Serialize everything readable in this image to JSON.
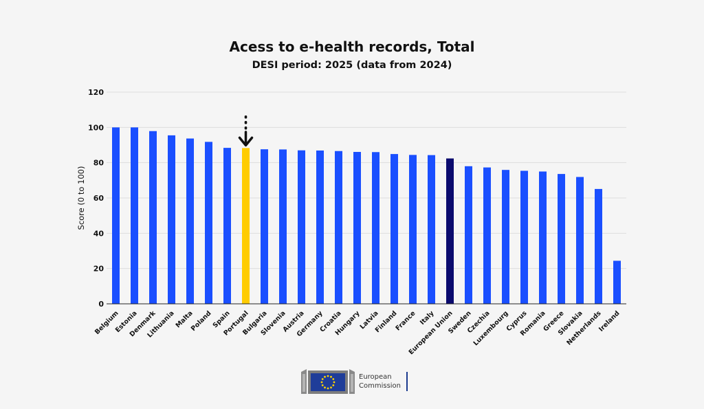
{
  "chart_data": {
    "type": "bar",
    "title": "Acess to e-health records, Total",
    "subtitle": "DESI period: 2025 (data from 2024)",
    "ylabel": "Score (0 to 100)",
    "xlabel": "",
    "ylim": [
      0,
      120
    ],
    "yticks": [
      0,
      20,
      40,
      60,
      80,
      100,
      120
    ],
    "grid": true,
    "categories": [
      "Belgium",
      "Estonia",
      "Denmark",
      "Lithuania",
      "Malta",
      "Poland",
      "Spain",
      "Portugal",
      "Bulgaria",
      "Slovenia",
      "Austria",
      "Germany",
      "Croatia",
      "Hungary",
      "Latvia",
      "Finland",
      "France",
      "Italy",
      "European Union",
      "Sweden",
      "Czechia",
      "Luxembourg",
      "Cyprus",
      "Romania",
      "Greece",
      "Slovakia",
      "Netherlands",
      "Ireland"
    ],
    "values": [
      100,
      100,
      97.9,
      95.5,
      93.7,
      91.8,
      88.4,
      88.3,
      87.6,
      87.5,
      87.0,
      86.9,
      86.6,
      86.1,
      86.0,
      84.9,
      84.4,
      84.3,
      82.4,
      78.0,
      77.3,
      75.9,
      75.4,
      75.0,
      73.6,
      71.9,
      65.1,
      24.4
    ],
    "colors": {
      "default": "#1a4fff",
      "highlight": "#ffcc00",
      "average": "#0a0a6e",
      "grid": "#dddddd",
      "axis": "#222222"
    },
    "highlight_category": "Portugal",
    "average_category": "European Union"
  },
  "logo": {
    "line1": "European",
    "line2": "Commission"
  }
}
